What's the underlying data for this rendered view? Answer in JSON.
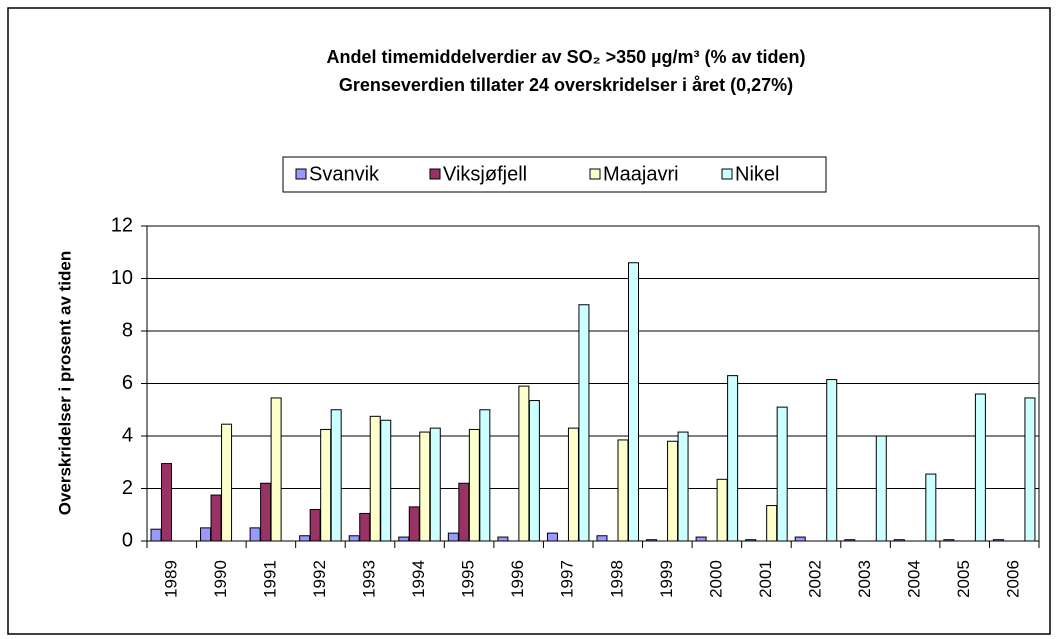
{
  "chart_data": {
    "type": "bar",
    "title": "Andel timemiddelverdier av SO₂ >350 µg/m³  (% av tiden)",
    "subtitle": "Grenseverdien tillater 24 overskridelser i året (0,27%)",
    "y_label": "Overskridelser i prosent av tiden",
    "categories": [
      "1989",
      "1990",
      "1991",
      "1992",
      "1993",
      "1994",
      "1995",
      "1996",
      "1997",
      "1998",
      "1999",
      "2000",
      "2001",
      "2002",
      "2003",
      "2004",
      "2005",
      "2006"
    ],
    "series": [
      {
        "name": "Svanvik",
        "color": "#9999ff",
        "values": [
          0.45,
          0.5,
          0.5,
          0.2,
          0.2,
          0.15,
          0.3,
          0.15,
          0.3,
          0.2,
          0.05,
          0.15,
          0.05,
          0.15,
          0.05,
          0.05,
          0.05,
          0.05
        ]
      },
      {
        "name": "Viksjøfjell",
        "color": "#993366",
        "values": [
          2.95,
          1.75,
          2.2,
          1.2,
          1.05,
          1.3,
          2.2,
          null,
          null,
          null,
          null,
          null,
          null,
          null,
          null,
          null,
          null,
          null
        ]
      },
      {
        "name": "Maajavri",
        "color": "#ffffcc",
        "values": [
          null,
          4.45,
          5.45,
          4.25,
          4.75,
          4.15,
          4.25,
          5.9,
          4.3,
          3.85,
          3.8,
          2.35,
          1.35,
          null,
          null,
          null,
          null,
          null
        ]
      },
      {
        "name": "Nikel",
        "color": "#ccffff",
        "values": [
          null,
          null,
          null,
          5.0,
          4.6,
          4.3,
          5.0,
          5.35,
          9.0,
          10.6,
          4.15,
          6.3,
          5.1,
          6.15,
          4.0,
          2.55,
          5.6,
          5.45
        ]
      }
    ],
    "ylim": [
      0,
      12
    ],
    "yticks": [
      0,
      2,
      4,
      6,
      8,
      10,
      12
    ],
    "grid": true,
    "legend": "top"
  }
}
